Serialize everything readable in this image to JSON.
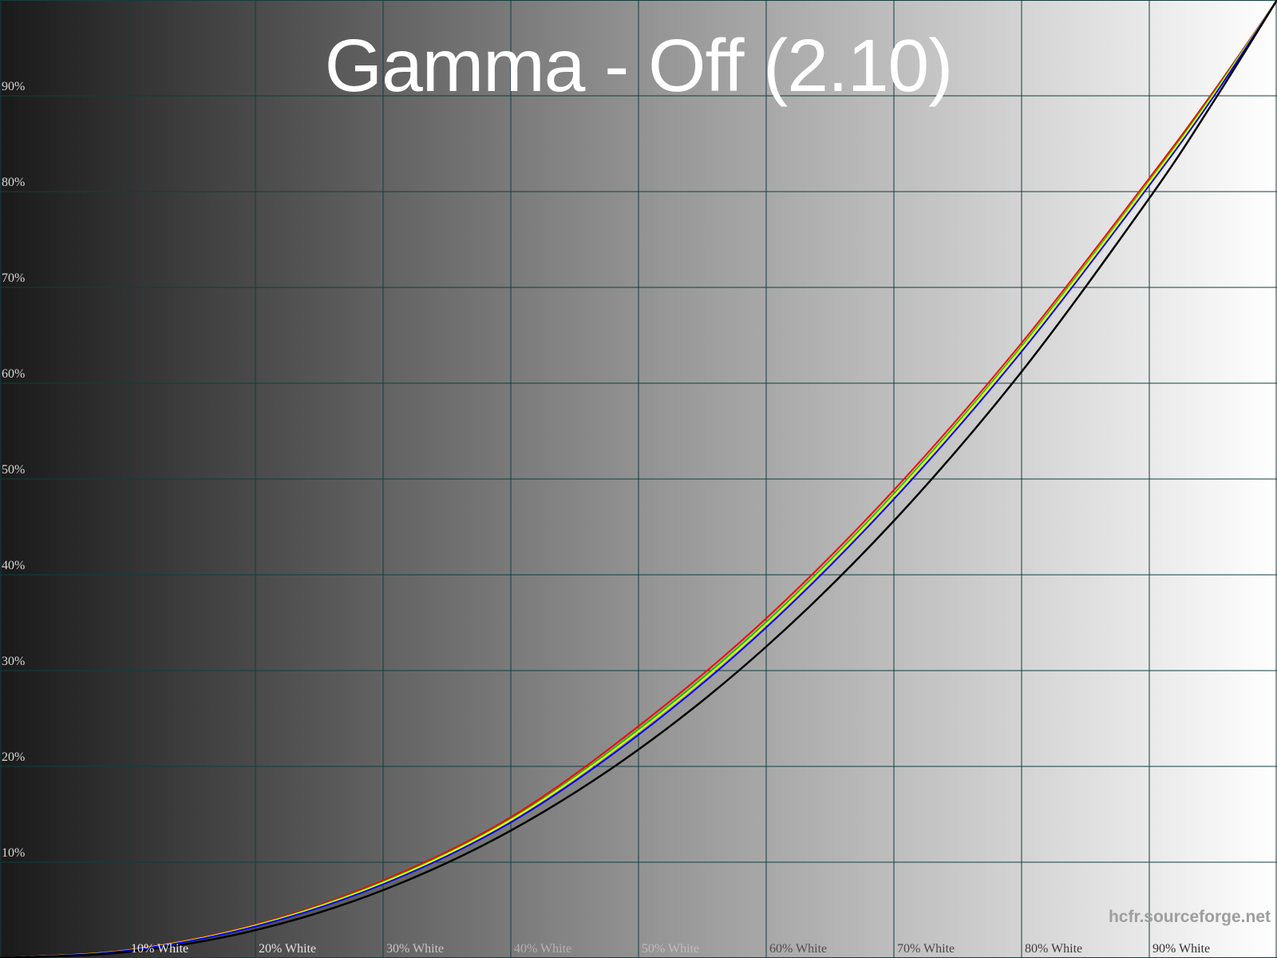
{
  "title": "Gamma - Off (2.10)",
  "watermark": "hcfr.sourceforge.net",
  "colors": {
    "background_left": "#1a1a1a",
    "background_mid": "#929292",
    "background_right": "#ffffff",
    "grid": "#123d3d",
    "title_text": "#ffffff",
    "y_label_text": "#d8d8d8",
    "watermark_text": "#9e9e9e"
  },
  "axes": {
    "y_ticks": [
      {
        "label": "90%",
        "pct": 90
      },
      {
        "label": "80%",
        "pct": 80
      },
      {
        "label": "70%",
        "pct": 70
      },
      {
        "label": "60%",
        "pct": 60
      },
      {
        "label": "50%",
        "pct": 50
      },
      {
        "label": "40%",
        "pct": 40
      },
      {
        "label": "30%",
        "pct": 30
      },
      {
        "label": "20%",
        "pct": 20
      },
      {
        "label": "10%",
        "pct": 10
      }
    ],
    "x_ticks": [
      {
        "label": "10% White",
        "pct": 10,
        "color": "#ededed"
      },
      {
        "label": "20% White",
        "pct": 20,
        "color": "#e2e2e2"
      },
      {
        "label": "30% White",
        "pct": 30,
        "color": "#c6c6c6"
      },
      {
        "label": "40% White",
        "pct": 40,
        "color": "#b2b2b2"
      },
      {
        "label": "50% White",
        "pct": 50,
        "color": "#bdbdbd"
      },
      {
        "label": "60% White",
        "pct": 60,
        "color": "#4e4e4e"
      },
      {
        "label": "70% White",
        "pct": 70,
        "color": "#474747"
      },
      {
        "label": "80% White",
        "pct": 80,
        "color": "#3c3c3c"
      },
      {
        "label": "90% White",
        "pct": 90,
        "color": "#323232"
      }
    ]
  },
  "chart_data": {
    "type": "line",
    "title": "Gamma - Off (2.10)",
    "xlabel": "",
    "ylabel": "",
    "x_range_pct": [
      0,
      100
    ],
    "y_range_pct": [
      0,
      100
    ],
    "grid": true,
    "legend_position": "none",
    "grid_step_x_pct": 10,
    "grid_step_y_pct": 10,
    "x_pct": [
      0,
      10,
      20,
      30,
      40,
      50,
      60,
      70,
      80,
      90,
      95,
      100
    ],
    "series": [
      {
        "name": "red-channel",
        "color": "#ff0000",
        "width": 2,
        "gamma": 2.07,
        "values_pct": [
          0,
          0.84,
          3.5,
          8.1,
          14.7,
          24.2,
          35.45,
          48.85,
          64.2,
          81.4,
          90.4,
          100
        ]
      },
      {
        "name": "green-channel",
        "color": "#00c800",
        "width": 2,
        "gamma": 2.09,
        "values_pct": [
          0,
          0.81,
          3.43,
          7.95,
          14.5,
          23.85,
          35.05,
          48.45,
          63.85,
          81.1,
          90.2,
          100
        ]
      },
      {
        "name": "luminance",
        "color": "#ffff00",
        "width": 2,
        "gamma": 2.1,
        "values_pct": [
          0,
          0.8,
          3.38,
          7.85,
          14.4,
          23.65,
          34.85,
          48.25,
          63.65,
          80.95,
          90.05,
          100
        ]
      },
      {
        "name": "blue-channel",
        "color": "#0000ff",
        "width": 2,
        "gamma": 2.115,
        "values_pct": [
          0,
          0.77,
          3.3,
          7.7,
          14.15,
          23.3,
          34.5,
          47.9,
          63.3,
          80.65,
          89.85,
          100
        ]
      },
      {
        "name": "reference-gamma-2.2",
        "color": "#000000",
        "width": 2.5,
        "gamma": 2.2,
        "values_pct": [
          0,
          0.63,
          2.9,
          7.08,
          13.3,
          21.76,
          32.5,
          45.63,
          61.2,
          79.31,
          89.33,
          100
        ]
      }
    ]
  }
}
